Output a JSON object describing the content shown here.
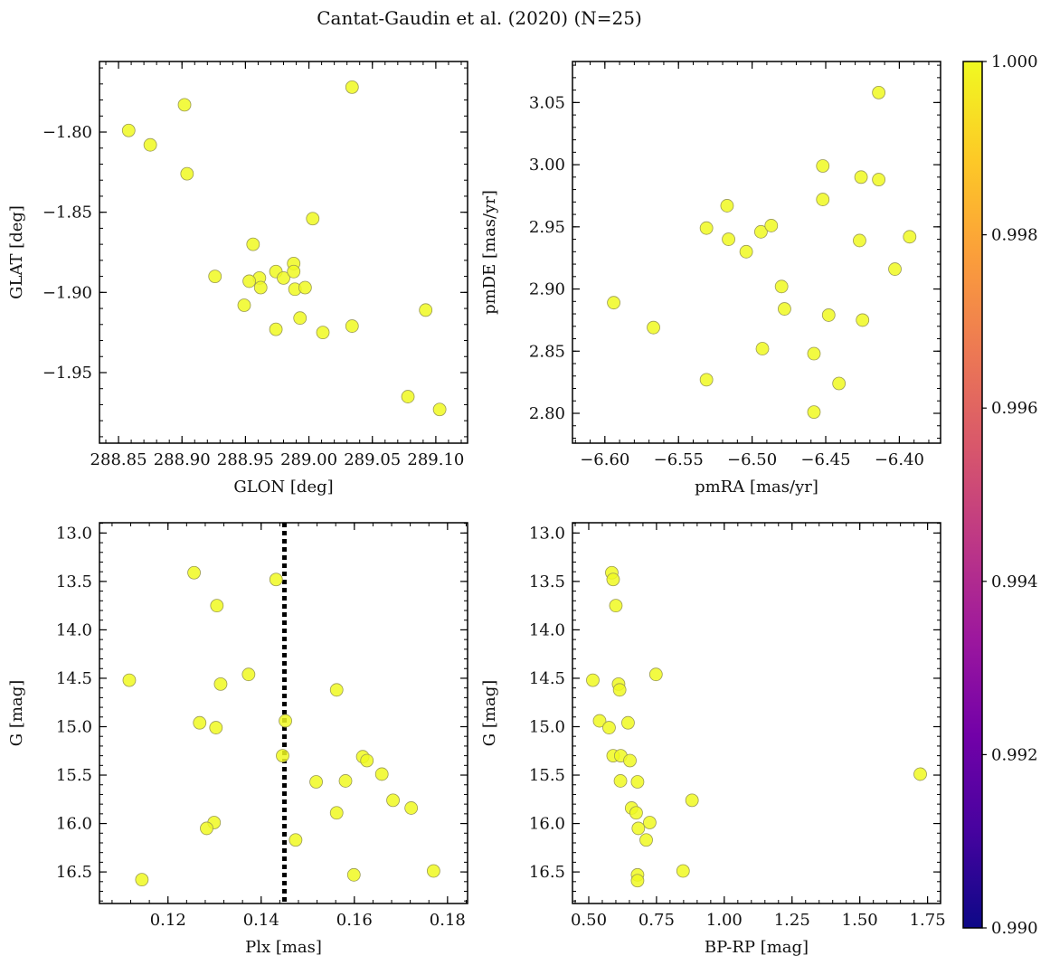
{
  "figure": {
    "title": "Cantat-Gaudin et al. (2020) (N=25)"
  },
  "colors": {
    "marker_fill": "#f0f921",
    "marker_edge": "#9a9a55",
    "axis": "#000000",
    "vline": "#000000",
    "colormap": [
      "#0d0887",
      "#46039f",
      "#7201a8",
      "#9c179e",
      "#bd3786",
      "#d8576b",
      "#ed7953",
      "#fb9f3a",
      "#fdca26",
      "#f0f921"
    ]
  },
  "colorbar": {
    "range": [
      0.99,
      1.0
    ],
    "ticks": [
      0.99,
      0.992,
      0.994,
      0.996,
      0.998,
      1.0
    ],
    "tick_labels": [
      "0.990",
      "0.992",
      "0.994",
      "0.996",
      "0.998",
      "1.000"
    ]
  },
  "chart_data": [
    {
      "id": "glon_glat",
      "type": "scatter",
      "xlabel": "GLON [deg]",
      "ylabel": "GLAT [deg]",
      "xlim": [
        288.835,
        289.125
      ],
      "ylim": [
        -1.994,
        -1.756
      ],
      "xticks": [
        288.85,
        288.9,
        288.95,
        289.0,
        289.05,
        289.1
      ],
      "xtick_labels": [
        "288.85",
        "288.90",
        "288.95",
        "289.00",
        "289.05",
        "289.10"
      ],
      "yticks": [
        -1.95,
        -1.9,
        -1.85,
        -1.8
      ],
      "ytick_labels": [
        "−1.95",
        "−1.90",
        "−1.85",
        "−1.80"
      ],
      "x_minor_step": 0.01,
      "y_minor_step": 0.01,
      "x": [
        288.858,
        288.875,
        288.902,
        288.904,
        289.034,
        288.956,
        289.003,
        288.926,
        288.961,
        288.953,
        288.962,
        288.974,
        288.98,
        288.988,
        288.988,
        288.989,
        288.997,
        288.949,
        288.993,
        288.974,
        289.011,
        289.034,
        289.092,
        289.078,
        289.103
      ],
      "y": [
        -1.799,
        -1.808,
        -1.783,
        -1.826,
        -1.772,
        -1.87,
        -1.854,
        -1.89,
        -1.891,
        -1.893,
        -1.897,
        -1.887,
        -1.891,
        -1.882,
        -1.887,
        -1.898,
        -1.897,
        -1.908,
        -1.916,
        -1.923,
        -1.925,
        -1.921,
        -1.911,
        -1.965,
        -1.973
      ]
    },
    {
      "id": "pm",
      "type": "scatter",
      "xlabel": "pmRA [mas/yr]",
      "ylabel": "pmDE [mas/yr]",
      "xlim": [
        -6.622,
        -6.372
      ],
      "ylim": [
        2.776,
        3.083
      ],
      "xticks": [
        -6.6,
        -6.55,
        -6.5,
        -6.45,
        -6.4
      ],
      "xtick_labels": [
        "−6.60",
        "−6.55",
        "−6.50",
        "−6.45",
        "−6.40"
      ],
      "yticks": [
        2.8,
        2.85,
        2.9,
        2.95,
        3.0,
        3.05
      ],
      "ytick_labels": [
        "2.80",
        "2.85",
        "2.90",
        "2.95",
        "3.00",
        "3.05"
      ],
      "x_minor_step": 0.01,
      "y_minor_step": 0.01,
      "x": [
        -6.414,
        -6.452,
        -6.426,
        -6.414,
        -6.452,
        -6.517,
        -6.531,
        -6.494,
        -6.487,
        -6.516,
        -6.504,
        -6.427,
        -6.393,
        -6.403,
        -6.594,
        -6.48,
        -6.478,
        -6.448,
        -6.425,
        -6.567,
        -6.493,
        -6.458,
        -6.531,
        -6.441,
        -6.458
      ],
      "y": [
        3.058,
        2.999,
        2.99,
        2.988,
        2.972,
        2.967,
        2.949,
        2.946,
        2.951,
        2.94,
        2.93,
        2.939,
        2.942,
        2.916,
        2.889,
        2.902,
        2.884,
        2.879,
        2.875,
        2.869,
        2.852,
        2.848,
        2.827,
        2.824,
        2.801
      ]
    },
    {
      "id": "plx_g",
      "type": "scatter",
      "xlabel": "Plx [mas]",
      "ylabel": "G [mag]",
      "xlim": [
        0.1053,
        0.1843
      ],
      "ylim": [
        16.826,
        12.894
      ],
      "y_inverted": true,
      "xticks": [
        0.12,
        0.14,
        0.16,
        0.18
      ],
      "xtick_labels": [
        "0.12",
        "0.14",
        "0.16",
        "0.18"
      ],
      "yticks": [
        13.0,
        13.5,
        14.0,
        14.5,
        15.0,
        15.5,
        16.0,
        16.5
      ],
      "ytick_labels": [
        "13.0",
        "13.5",
        "14.0",
        "14.5",
        "15.0",
        "15.5",
        "16.0",
        "16.5"
      ],
      "x_minor_step": 0.004,
      "y_minor_step": 0.1,
      "vline": 0.145,
      "x": [
        0.1256,
        0.1432,
        0.1305,
        0.1117,
        0.1373,
        0.1313,
        0.1562,
        0.1268,
        0.1303,
        0.1452,
        0.1446,
        0.1618,
        0.1627,
        0.1659,
        0.1518,
        0.1581,
        0.1683,
        0.1722,
        0.1562,
        0.1299,
        0.1283,
        0.1474,
        0.1599,
        0.177,
        0.1144
      ],
      "y": [
        13.41,
        13.48,
        13.75,
        14.52,
        14.46,
        14.56,
        14.62,
        14.96,
        15.01,
        14.94,
        15.3,
        15.31,
        15.35,
        15.49,
        15.57,
        15.56,
        15.76,
        15.84,
        15.89,
        15.99,
        16.05,
        16.17,
        16.53,
        16.49,
        16.58
      ]
    },
    {
      "id": "bprp_g",
      "type": "scatter",
      "xlabel": "BP-RP [mag]",
      "ylabel": "G [mag]",
      "xlim": [
        0.44,
        1.798
      ],
      "ylim": [
        16.826,
        12.894
      ],
      "y_inverted": true,
      "xticks": [
        0.5,
        0.75,
        1.0,
        1.25,
        1.5,
        1.75
      ],
      "xtick_labels": [
        "0.50",
        "0.75",
        "1.00",
        "1.25",
        "1.50",
        "1.75"
      ],
      "yticks": [
        13.0,
        13.5,
        14.0,
        14.5,
        15.0,
        15.5,
        16.0,
        16.5
      ],
      "ytick_labels": [
        "13.0",
        "13.5",
        "14.0",
        "14.5",
        "15.0",
        "15.5",
        "16.0",
        "16.5"
      ],
      "x_minor_step": 0.05,
      "y_minor_step": 0.1,
      "x": [
        0.585,
        0.59,
        0.6,
        0.515,
        0.748,
        0.61,
        0.614,
        0.54,
        0.575,
        0.645,
        0.59,
        0.618,
        0.652,
        1.723,
        0.68,
        0.617,
        0.881,
        0.658,
        0.675,
        0.725,
        0.683,
        0.712,
        0.848,
        0.68,
        0.68
      ],
      "y": [
        13.41,
        13.48,
        13.75,
        14.52,
        14.46,
        14.56,
        14.62,
        14.94,
        15.01,
        14.96,
        15.3,
        15.3,
        15.35,
        15.49,
        15.57,
        15.56,
        15.76,
        15.84,
        15.89,
        15.99,
        16.05,
        16.17,
        16.49,
        16.53,
        16.59
      ]
    }
  ]
}
